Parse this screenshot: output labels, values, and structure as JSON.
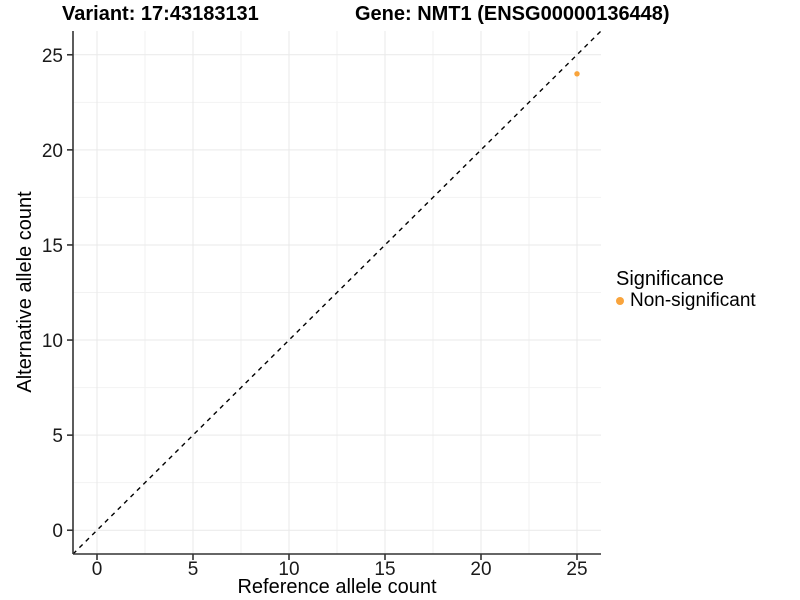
{
  "titles": {
    "variant": "Variant: 17:43183131",
    "gene": "Gene: NMT1 (ENSG00000136448)"
  },
  "chart_data": {
    "type": "scatter",
    "title_left": "Variant: 17:43183131",
    "title_right": "Gene: NMT1 (ENSG00000136448)",
    "xlabel": "Reference allele count",
    "ylabel": "Alternative allele count",
    "xlim": [
      -1.25,
      26.25
    ],
    "ylim": [
      -1.25,
      26.25
    ],
    "x_ticks": [
      0,
      5,
      10,
      15,
      20,
      25
    ],
    "y_ticks": [
      0,
      5,
      10,
      15,
      20,
      25
    ],
    "x_minor_ticks": [
      2.5,
      7.5,
      12.5,
      17.5,
      22.5
    ],
    "y_minor_ticks": [
      2.5,
      7.5,
      12.5,
      17.5,
      22.5
    ],
    "grid": "major and minor, light gray on white",
    "reference_line": {
      "equation": "y = x",
      "style": "dashed",
      "color": "#000000"
    },
    "series": [
      {
        "name": "Non-significant",
        "color": "#F9A43C",
        "points": [
          {
            "x": 25,
            "y": 24
          }
        ]
      }
    ],
    "legend": {
      "title": "Significance",
      "position": "right",
      "items": [
        {
          "label": "Non-significant",
          "color": "#F9A43C"
        }
      ]
    }
  },
  "colors": {
    "background": "#ffffff",
    "gridline_major": "#e9e9e9",
    "gridline_minor": "#f2f2f2",
    "axis_line": "#333333",
    "tick_mark": "#333333",
    "tick_label": "#1a1a1a",
    "point": "#F9A43C",
    "dashed_line": "#000000"
  }
}
